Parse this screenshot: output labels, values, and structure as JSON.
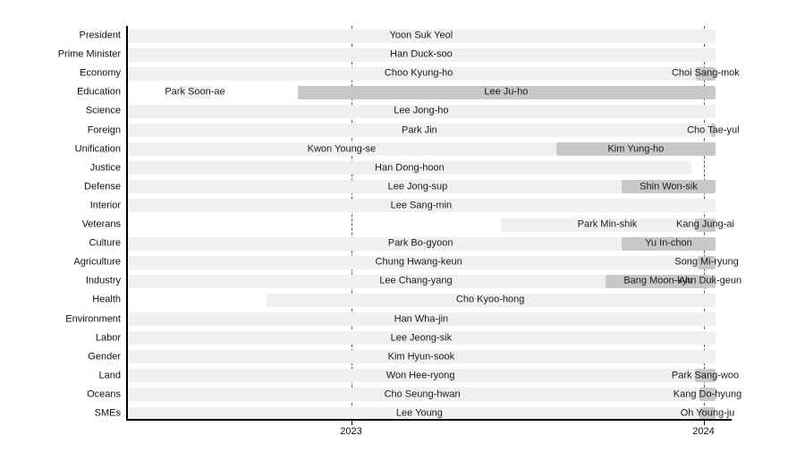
{
  "chart_data": {
    "type": "gantt",
    "title": "",
    "xlabel": "",
    "ylabel": "",
    "grid": "dashed vertical year lines",
    "legend": "none",
    "x_axis": {
      "tick_labels": [
        "2023",
        "2024"
      ],
      "tick_years": [
        2023,
        2024
      ],
      "xlim_years": [
        2022.364,
        2024.079
      ]
    },
    "shade_colors": {
      "light": "#f0f0f0",
      "dark": "#c8c8c8"
    },
    "text_color": "#1a1a1a",
    "rows": [
      {
        "ministry": "President",
        "segments": [
          {
            "name": "Yoon Suk Yeol",
            "start": 2022.364,
            "end": 2024.034,
            "shade": "light",
            "label_year": 2023.199
          }
        ]
      },
      {
        "ministry": "Prime Minister",
        "segments": [
          {
            "name": "Han Duck-soo",
            "start": 2022.364,
            "end": 2024.034,
            "shade": "light",
            "label_year": 2023.199
          }
        ]
      },
      {
        "ministry": "Economy",
        "segments": [
          {
            "name": "Choo Kyung-ho",
            "start": 2022.364,
            "end": 2023.978,
            "shade": "light",
            "label_year": 2023.192
          },
          {
            "name": "Choi Sang-mok",
            "start": 2023.978,
            "end": 2024.034,
            "shade": "dark"
          }
        ]
      },
      {
        "ministry": "Education",
        "segments": [
          {
            "name": "Park Soon-ae",
            "start": 2022.511,
            "end": 2022.603,
            "shade": "light"
          },
          {
            "name": "Lee Ju-ho",
            "start": 2022.849,
            "end": 2024.034,
            "shade": "dark",
            "label_year": 2023.44
          }
        ]
      },
      {
        "ministry": "Science",
        "segments": [
          {
            "name": "Lee Jong-ho",
            "start": 2022.364,
            "end": 2024.034,
            "shade": "light",
            "label_year": 2023.199
          }
        ]
      },
      {
        "ministry": "Foreign",
        "segments": [
          {
            "name": "Park Jin",
            "start": 2022.364,
            "end": 2024.021,
            "shade": "light",
            "label_year": 2023.194
          },
          {
            "name": "Cho Tae-yul",
            "start": 2024.021,
            "end": 2024.034,
            "shade": "dark"
          }
        ]
      },
      {
        "ministry": "Unification",
        "segments": [
          {
            "name": "Kwon Young-se",
            "start": 2022.364,
            "end": 2023.582,
            "shade": "light"
          },
          {
            "name": "Kim Yung-ho",
            "start": 2023.582,
            "end": 2024.034,
            "shade": "dark"
          }
        ]
      },
      {
        "ministry": "Justice",
        "segments": [
          {
            "name": "Han Dong-hoon",
            "start": 2022.364,
            "end": 2023.966,
            "shade": "light",
            "label_year": 2023.166
          }
        ]
      },
      {
        "ministry": "Defense",
        "segments": [
          {
            "name": "Lee Jong-sup",
            "start": 2022.364,
            "end": 2023.768,
            "shade": "light",
            "label_year": 2023.189
          },
          {
            "name": "Shin Won-sik",
            "start": 2023.768,
            "end": 2024.034,
            "shade": "dark"
          }
        ]
      },
      {
        "ministry": "Interior",
        "segments": [
          {
            "name": "Lee Sang-min",
            "start": 2022.364,
            "end": 2024.034,
            "shade": "light",
            "label_year": 2023.199
          }
        ]
      },
      {
        "ministry": "Veterans",
        "segments": [
          {
            "name": "Park Min-shik",
            "start": 2023.425,
            "end": 2023.976,
            "shade": "light",
            "label_year": 2023.727
          },
          {
            "name": "Kang Jung-ai",
            "start": 2023.976,
            "end": 2024.034,
            "shade": "dark"
          }
        ]
      },
      {
        "ministry": "Culture",
        "segments": [
          {
            "name": "Park Bo-gyoon",
            "start": 2022.364,
            "end": 2023.768,
            "shade": "light",
            "label_year": 2023.197
          },
          {
            "name": "Yu In-chon",
            "start": 2023.768,
            "end": 2024.034,
            "shade": "dark"
          }
        ]
      },
      {
        "ministry": "Agriculture",
        "segments": [
          {
            "name": "Chung Hwang-keun",
            "start": 2022.364,
            "end": 2023.984,
            "shade": "light",
            "label_year": 2023.192
          },
          {
            "name": "Song Mi-ryung",
            "start": 2023.984,
            "end": 2024.034,
            "shade": "dark"
          }
        ]
      },
      {
        "ministry": "Industry",
        "segments": [
          {
            "name": "Lee Chang-yang",
            "start": 2022.364,
            "end": 2023.722,
            "shade": "light",
            "label_year": 2023.184
          },
          {
            "name": "Bang Moon-kyu",
            "start": 2023.722,
            "end": 2024.021,
            "shade": "dark"
          },
          {
            "name": "Ahn Duk-geun",
            "start": 2024.021,
            "end": 2024.034,
            "shade": "dark",
            "label_year": 2024.019
          }
        ]
      },
      {
        "ministry": "Health",
        "segments": [
          {
            "name": "Cho Kyoo-hong",
            "start": 2022.76,
            "end": 2024.034,
            "shade": "light",
            "label_year": 2023.395
          }
        ]
      },
      {
        "ministry": "Environment",
        "segments": [
          {
            "name": "Han Wha-jin",
            "start": 2022.364,
            "end": 2024.034,
            "shade": "light",
            "label_year": 2023.199
          }
        ]
      },
      {
        "ministry": "Labor",
        "segments": [
          {
            "name": "Lee Jeong-sik",
            "start": 2022.364,
            "end": 2024.034,
            "shade": "light",
            "label_year": 2023.199
          }
        ]
      },
      {
        "ministry": "Gender",
        "segments": [
          {
            "name": "Kim Hyun-sook",
            "start": 2022.364,
            "end": 2024.034,
            "shade": "light",
            "label_year": 2023.199
          }
        ]
      },
      {
        "ministry": "Land",
        "segments": [
          {
            "name": "Won Hee-ryong",
            "start": 2022.364,
            "end": 2023.976,
            "shade": "light",
            "label_year": 2023.197
          },
          {
            "name": "Park Sang-woo",
            "start": 2023.976,
            "end": 2024.034,
            "shade": "dark"
          }
        ]
      },
      {
        "ministry": "Oceans",
        "segments": [
          {
            "name": "Cho Seung-hwan",
            "start": 2022.364,
            "end": 2023.989,
            "shade": "light",
            "label_year": 2023.202
          },
          {
            "name": "Kang Do-hyung",
            "start": 2023.989,
            "end": 2024.034,
            "shade": "dark"
          }
        ]
      },
      {
        "ministry": "SMEs",
        "segments": [
          {
            "name": "Lee Young",
            "start": 2022.364,
            "end": 2023.989,
            "shade": "light",
            "label_year": 2023.194
          },
          {
            "name": "Oh Young-ju",
            "start": 2023.989,
            "end": 2024.034,
            "shade": "dark"
          }
        ]
      }
    ]
  }
}
